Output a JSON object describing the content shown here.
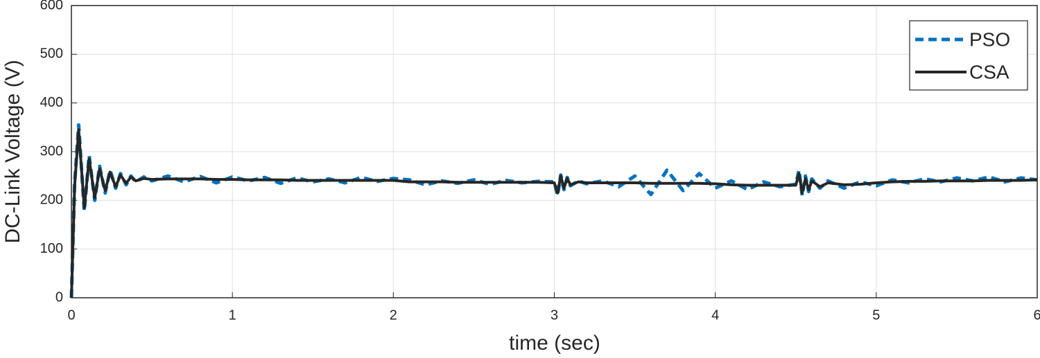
{
  "chart_data": {
    "type": "line",
    "x_label": "time (sec)",
    "y_label": "DC-Link Voltage (V)",
    "x": [
      0,
      0.02,
      0.045,
      0.08,
      0.11,
      0.145,
      0.175,
      0.21,
      0.24,
      0.275,
      0.305,
      0.34,
      0.37,
      0.4,
      0.45,
      0.5,
      0.6,
      0.7,
      0.8,
      0.9,
      1.0,
      1.1,
      1.2,
      1.3,
      1.4,
      1.5,
      1.6,
      1.7,
      1.8,
      1.9,
      2.0,
      2.1,
      2.2,
      2.3,
      2.4,
      2.5,
      2.6,
      2.7,
      2.8,
      2.9,
      3.0,
      3.02,
      3.04,
      3.06,
      3.08,
      3.1,
      3.15,
      3.2,
      3.3,
      3.4,
      3.5,
      3.6,
      3.7,
      3.8,
      3.9,
      4.0,
      4.1,
      4.2,
      4.3,
      4.4,
      4.5,
      4.52,
      4.54,
      4.56,
      4.58,
      4.6,
      4.65,
      4.7,
      4.8,
      4.9,
      5.0,
      5.1,
      5.2,
      5.3,
      5.4,
      5.5,
      5.6,
      5.7,
      5.8,
      5.9,
      6.0
    ],
    "series": [
      {
        "name": "PSO",
        "color": "#0072bd",
        "dashed": true,
        "values": [
          0,
          235,
          355,
          178,
          292,
          200,
          270,
          215,
          262,
          225,
          255,
          232,
          250,
          238,
          248,
          240,
          250,
          238,
          249,
          236,
          248,
          240,
          247,
          235,
          246,
          238,
          244,
          236,
          247,
          239,
          245,
          242,
          232,
          240,
          235,
          242,
          233,
          241,
          236,
          239,
          238,
          210,
          252,
          222,
          247,
          230,
          240,
          234,
          240,
          228,
          250,
          212,
          262,
          220,
          255,
          225,
          240,
          222,
          238,
          228,
          233,
          262,
          210,
          250,
          218,
          244,
          225,
          240,
          225,
          238,
          230,
          242,
          236,
          244,
          238,
          246,
          240,
          248,
          238,
          246,
          242
        ]
      },
      {
        "name": "CSA",
        "color": "#262626",
        "dashed": false,
        "values": [
          0,
          230,
          345,
          185,
          285,
          205,
          265,
          220,
          258,
          228,
          252,
          235,
          248,
          240,
          245,
          243,
          244,
          244,
          244,
          243,
          243,
          242,
          242,
          242,
          241,
          241,
          241,
          241,
          241,
          241,
          241,
          238,
          238,
          238,
          237,
          237,
          237,
          237,
          237,
          237,
          236,
          215,
          250,
          225,
          245,
          232,
          238,
          236,
          236,
          236,
          236,
          235,
          235,
          235,
          235,
          234,
          232,
          231,
          231,
          231,
          231,
          255,
          215,
          245,
          222,
          240,
          228,
          236,
          232,
          233,
          236,
          238,
          239,
          239,
          240,
          240,
          240,
          241,
          241,
          241,
          242
        ]
      }
    ],
    "xlim": [
      0,
      6
    ],
    "xticks": [
      0,
      1,
      2,
      3,
      4,
      5,
      6
    ],
    "ylim": [
      0,
      600
    ],
    "yticks": [
      0,
      100,
      200,
      300,
      400,
      500,
      600
    ],
    "grid": true,
    "legend": "upper right"
  }
}
